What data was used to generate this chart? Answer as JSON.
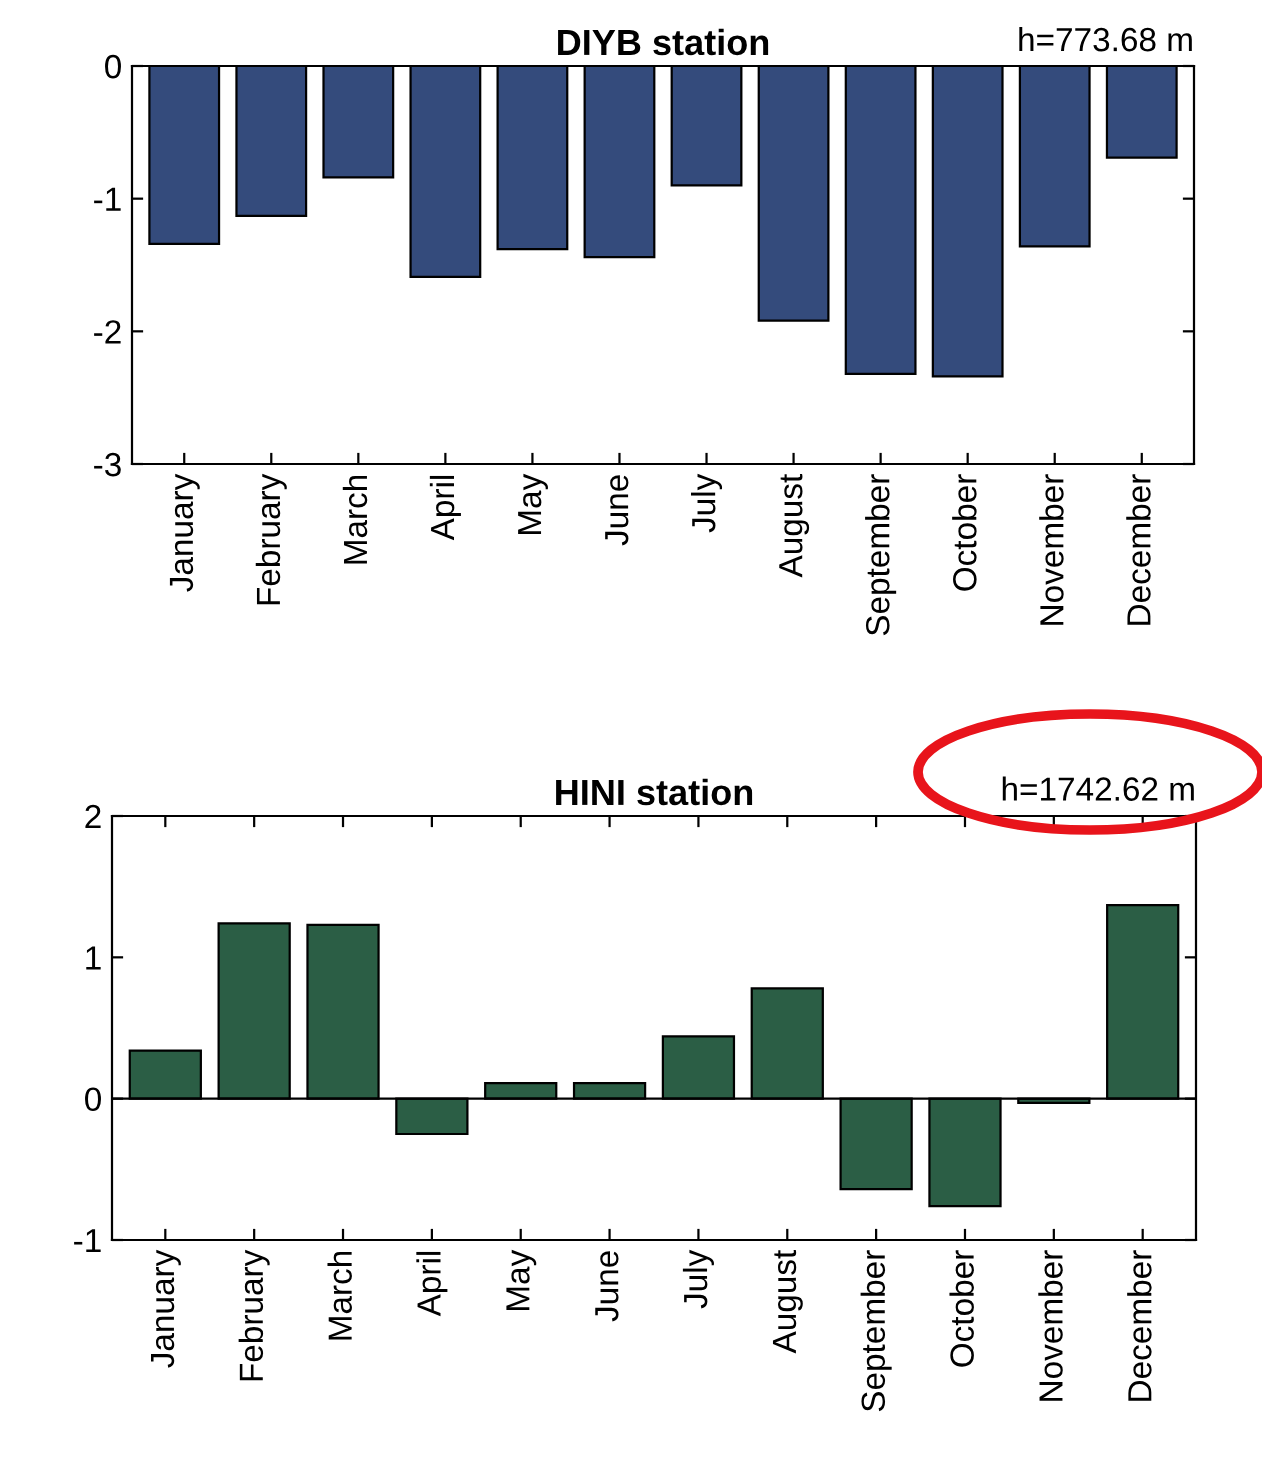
{
  "chart_data": [
    {
      "type": "bar",
      "title": "DIYB station",
      "annotations": [
        "h=773.68 m"
      ],
      "categories": [
        "January",
        "February",
        "March",
        "April",
        "May",
        "June",
        "July",
        "August",
        "September",
        "October",
        "November",
        "December"
      ],
      "color": "#344b7c",
      "ylim": [
        -3,
        0
      ],
      "yticks": [
        -3,
        -2,
        -1,
        0
      ],
      "values": [
        -1.34,
        -1.13,
        -0.84,
        -1.59,
        -1.38,
        -1.44,
        -0.9,
        -1.92,
        -2.32,
        -2.34,
        -1.36,
        -0.69
      ]
    },
    {
      "type": "bar",
      "title": "HINI station",
      "annotations": [
        "h=1742.62 m"
      ],
      "categories": [
        "January",
        "February",
        "March",
        "April",
        "May",
        "June",
        "July",
        "August",
        "September",
        "October",
        "November",
        "December"
      ],
      "color": "#2b5e45",
      "ylim": [
        -1,
        2
      ],
      "yticks": [
        -1,
        0,
        1,
        2
      ],
      "values": [
        0.34,
        1.24,
        1.23,
        -0.25,
        0.11,
        0.11,
        0.44,
        0.78,
        -0.64,
        -0.76,
        -0.03,
        1.37
      ]
    }
  ]
}
